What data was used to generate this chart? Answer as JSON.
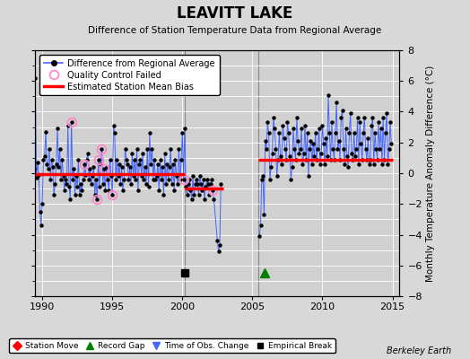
{
  "title": "LEAVITT LAKE",
  "subtitle": "Difference of Station Temperature Data from Regional Average",
  "ylabel": "Monthly Temperature Anomaly Difference (°C)",
  "credit": "Berkeley Earth",
  "xlim": [
    1989.5,
    2015.5
  ],
  "ylim": [
    -8,
    8
  ],
  "yticks": [
    -8,
    -6,
    -4,
    -2,
    0,
    2,
    4,
    6,
    8
  ],
  "xticks": [
    1990,
    1995,
    2000,
    2005,
    2010,
    2015
  ],
  "background_color": "#d8d8d8",
  "plot_bg_color": "#d0d0d0",
  "grid_color": "#ffffff",
  "line_color": "#4466ff",
  "dot_color": "#000000",
  "bias_color": "#ff0000",
  "qc_color": "#ff88cc",
  "seg1_start": 1989.0,
  "seg1_end": 2000.2,
  "seg1_bias": -0.05,
  "seg2_start": 2000.2,
  "seg2_end": 2002.9,
  "seg2_bias": -1.0,
  "seg3_start": 2005.4,
  "seg3_end": 2015.0,
  "seg3_bias": 0.9,
  "vline1": 2000.2,
  "vline2": 2005.4,
  "emp_break_x": 2000.2,
  "emp_break_y": -6.5,
  "rec_gap_x": 2005.9,
  "rec_gap_y": -6.5,
  "years": [
    1989.0,
    1989.083,
    1989.167,
    1989.25,
    1989.333,
    1989.417,
    1989.5,
    1989.583,
    1989.667,
    1989.75,
    1989.833,
    1989.917,
    1990.0,
    1990.083,
    1990.167,
    1990.25,
    1990.333,
    1990.417,
    1990.5,
    1990.583,
    1990.667,
    1990.75,
    1990.833,
    1990.917,
    1991.0,
    1991.083,
    1991.167,
    1991.25,
    1991.333,
    1991.417,
    1991.5,
    1991.583,
    1991.667,
    1991.75,
    1991.833,
    1991.917,
    1992.0,
    1992.083,
    1992.167,
    1992.25,
    1992.333,
    1992.417,
    1992.5,
    1992.583,
    1992.667,
    1992.75,
    1992.833,
    1992.917,
    1993.0,
    1993.083,
    1993.167,
    1993.25,
    1993.333,
    1993.417,
    1993.5,
    1993.583,
    1993.667,
    1993.75,
    1993.833,
    1993.917,
    1994.0,
    1994.083,
    1994.167,
    1994.25,
    1994.333,
    1994.417,
    1994.5,
    1994.583,
    1994.667,
    1994.75,
    1994.833,
    1994.917,
    1995.0,
    1995.083,
    1995.167,
    1995.25,
    1995.333,
    1995.417,
    1995.5,
    1995.583,
    1995.667,
    1995.75,
    1995.833,
    1995.917,
    1996.0,
    1996.083,
    1996.167,
    1996.25,
    1996.333,
    1996.417,
    1996.5,
    1996.583,
    1996.667,
    1996.75,
    1996.833,
    1996.917,
    1997.0,
    1997.083,
    1997.167,
    1997.25,
    1997.333,
    1997.417,
    1997.5,
    1997.583,
    1997.667,
    1997.75,
    1997.833,
    1997.917,
    1998.0,
    1998.083,
    1998.167,
    1998.25,
    1998.333,
    1998.417,
    1998.5,
    1998.583,
    1998.667,
    1998.75,
    1998.833,
    1998.917,
    1999.0,
    1999.083,
    1999.167,
    1999.25,
    1999.333,
    1999.417,
    1999.5,
    1999.583,
    1999.667,
    1999.75,
    1999.833,
    1999.917,
    2000.0,
    2000.083,
    2000.167,
    2000.25,
    2000.333,
    2000.417,
    2000.5,
    2000.583,
    2000.667,
    2000.75,
    2000.833,
    2000.917,
    2001.0,
    2001.083,
    2001.167,
    2001.25,
    2001.333,
    2001.417,
    2001.5,
    2001.583,
    2001.667,
    2001.75,
    2001.833,
    2001.917,
    2002.0,
    2002.083,
    2002.167,
    2002.25,
    2002.5,
    2002.583,
    2002.667,
    2002.75,
    2005.5,
    2005.583,
    2005.667,
    2005.75,
    2005.833,
    2005.917,
    2006.0,
    2006.083,
    2006.167,
    2006.25,
    2006.333,
    2006.417,
    2006.5,
    2006.583,
    2006.667,
    2006.75,
    2006.833,
    2006.917,
    2007.0,
    2007.083,
    2007.167,
    2007.25,
    2007.333,
    2007.417,
    2007.5,
    2007.583,
    2007.667,
    2007.75,
    2007.833,
    2007.917,
    2008.0,
    2008.083,
    2008.167,
    2008.25,
    2008.333,
    2008.417,
    2008.5,
    2008.583,
    2008.667,
    2008.75,
    2008.833,
    2008.917,
    2009.0,
    2009.083,
    2009.167,
    2009.25,
    2009.333,
    2009.417,
    2009.5,
    2009.583,
    2009.667,
    2009.75,
    2009.833,
    2009.917,
    2010.0,
    2010.083,
    2010.167,
    2010.25,
    2010.333,
    2010.417,
    2010.5,
    2010.583,
    2010.667,
    2010.75,
    2010.833,
    2010.917,
    2011.0,
    2011.083,
    2011.167,
    2011.25,
    2011.333,
    2011.417,
    2011.5,
    2011.583,
    2011.667,
    2011.75,
    2011.833,
    2011.917,
    2012.0,
    2012.083,
    2012.167,
    2012.25,
    2012.333,
    2012.417,
    2012.5,
    2012.583,
    2012.667,
    2012.75,
    2012.833,
    2012.917,
    2013.0,
    2013.083,
    2013.167,
    2013.25,
    2013.333,
    2013.417,
    2013.5,
    2013.583,
    2013.667,
    2013.75,
    2013.833,
    2013.917,
    2014.0,
    2014.083,
    2014.167,
    2014.25,
    2014.333,
    2014.417,
    2014.5,
    2014.583,
    2014.667,
    2014.75,
    2014.833,
    2014.917
  ],
  "values": [
    3.8,
    0.3,
    -0.4,
    -1.0,
    -0.7,
    0.3,
    6.2,
    -0.3,
    0.7,
    -0.1,
    -2.5,
    -3.4,
    -2.0,
    0.9,
    1.1,
    2.7,
    0.6,
    0.3,
    1.6,
    -0.4,
    0.9,
    0.4,
    -1.4,
    -0.7,
    0.6,
    2.9,
    0.4,
    1.6,
    -0.4,
    0.9,
    -0.2,
    -1.1,
    -0.4,
    -0.7,
    3.1,
    -0.9,
    -1.7,
    3.3,
    -0.4,
    0.3,
    -1.4,
    -0.2,
    -0.9,
    0.9,
    -1.4,
    -0.7,
    -1.1,
    -0.4,
    0.6,
    -0.1,
    0.9,
    1.3,
    -0.4,
    0.3,
    -0.7,
    -0.2,
    0.4,
    -1.4,
    -0.4,
    -1.7,
    0.9,
    -0.9,
    0.6,
    1.6,
    -0.7,
    0.3,
    -1.1,
    0.4,
    -0.4,
    -1.1,
    0.9,
    -0.2,
    -1.4,
    3.1,
    2.6,
    -0.4,
    0.9,
    -0.2,
    0.6,
    -0.7,
    0.4,
    -1.1,
    -0.4,
    1.6,
    0.9,
    0.6,
    -0.4,
    0.4,
    -0.7,
    1.3,
    -0.2,
    0.9,
    -0.4,
    1.6,
    -1.1,
    0.6,
    0.9,
    -0.2,
    1.3,
    -0.4,
    0.4,
    -0.7,
    1.6,
    -0.9,
    2.6,
    0.6,
    1.6,
    -0.4,
    0.9,
    -0.4,
    -0.2,
    0.6,
    -1.1,
    0.9,
    -0.4,
    0.4,
    -1.4,
    1.3,
    -0.7,
    0.6,
    -0.4,
    0.4,
    1.6,
    -0.7,
    0.6,
    -1.1,
    0.9,
    -0.2,
    -0.7,
    1.6,
    -0.4,
    0.9,
    2.6,
    -0.4,
    2.9,
    -0.9,
    -1.4,
    -0.7,
    -0.4,
    -1.1,
    -1.7,
    -0.2,
    -1.4,
    -0.7,
    -0.4,
    -0.7,
    -1.4,
    -0.2,
    -0.7,
    -1.1,
    -0.4,
    -1.7,
    -0.9,
    -0.4,
    -0.7,
    -1.4,
    -0.7,
    -0.4,
    -1.1,
    -1.7,
    -4.4,
    -5.1,
    -4.7,
    -0.7,
    -4.1,
    -3.4,
    -0.4,
    -0.2,
    -2.7,
    2.1,
    1.6,
    3.3,
    2.6,
    -0.4,
    0.4,
    1.3,
    3.6,
    2.9,
    1.6,
    -0.2,
    0.9,
    2.6,
    1.1,
    0.6,
    3.1,
    2.3,
    1.6,
    0.9,
    3.3,
    2.6,
    1.1,
    -0.4,
    0.4,
    2.9,
    1.6,
    0.9,
    3.6,
    2.1,
    1.3,
    1.6,
    2.9,
    0.6,
    1.3,
    3.1,
    0.9,
    2.6,
    -0.2,
    1.6,
    2.1,
    0.6,
    1.9,
    1.1,
    2.6,
    0.9,
    1.6,
    2.9,
    0.6,
    1.3,
    3.1,
    1.9,
    0.6,
    2.3,
    1.1,
    5.1,
    2.6,
    0.9,
    3.3,
    1.6,
    0.9,
    2.6,
    4.6,
    1.6,
    2.1,
    0.9,
    3.6,
    4.1,
    1.6,
    0.6,
    2.9,
    1.1,
    0.4,
    2.6,
    3.9,
    1.3,
    0.9,
    2.6,
    1.1,
    1.6,
    3.6,
    0.6,
    3.3,
    1.9,
    0.9,
    2.6,
    3.6,
    1.6,
    0.9,
    2.3,
    0.6,
    0.9,
    3.1,
    3.6,
    0.6,
    2.6,
    1.6,
    0.9,
    3.3,
    1.6,
    2.9,
    0.6,
    3.6,
    0.9,
    2.6,
    3.9,
    0.6,
    1.6,
    3.3,
    1.9,
    0.6,
    2.6,
    1.1,
    3.6,
    -2.1
  ],
  "qc_indices": [
    0,
    37,
    48,
    59,
    60,
    63,
    65,
    72,
    133,
    158
  ]
}
